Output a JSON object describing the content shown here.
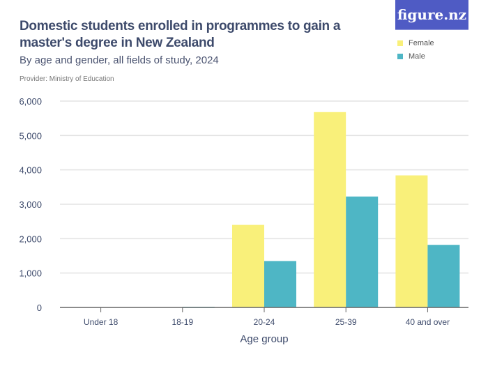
{
  "title": "Domestic students enrolled in programmes to gain a master's degree in New Zealand",
  "subtitle": "By age and gender, all fields of study, 2024",
  "provider": "Provider: Ministry of Education",
  "logo": "figure.nz",
  "chart_data": {
    "type": "bar",
    "title": "Domestic students enrolled in programmes to gain a master's degree in New Zealand",
    "xlabel": "Age group",
    "ylabel": "",
    "categories": [
      "Under 18",
      "18-19",
      "20-24",
      "25-39",
      "40 and over"
    ],
    "series": [
      {
        "name": "Female",
        "color": "#f9f07a",
        "values": [
          0,
          0,
          2400,
          5680,
          3840
        ]
      },
      {
        "name": "Male",
        "color": "#4eb6c5",
        "values": [
          0,
          20,
          1350,
          3225,
          1820
        ]
      }
    ],
    "ylim": [
      0,
      6000
    ],
    "yticks": [
      0,
      1000,
      2000,
      3000,
      4000,
      5000,
      6000
    ],
    "ytick_labels": [
      "0",
      "1,000",
      "2,000",
      "3,000",
      "4,000",
      "5,000",
      "6,000"
    ],
    "grid": true,
    "legend": "top-right"
  }
}
